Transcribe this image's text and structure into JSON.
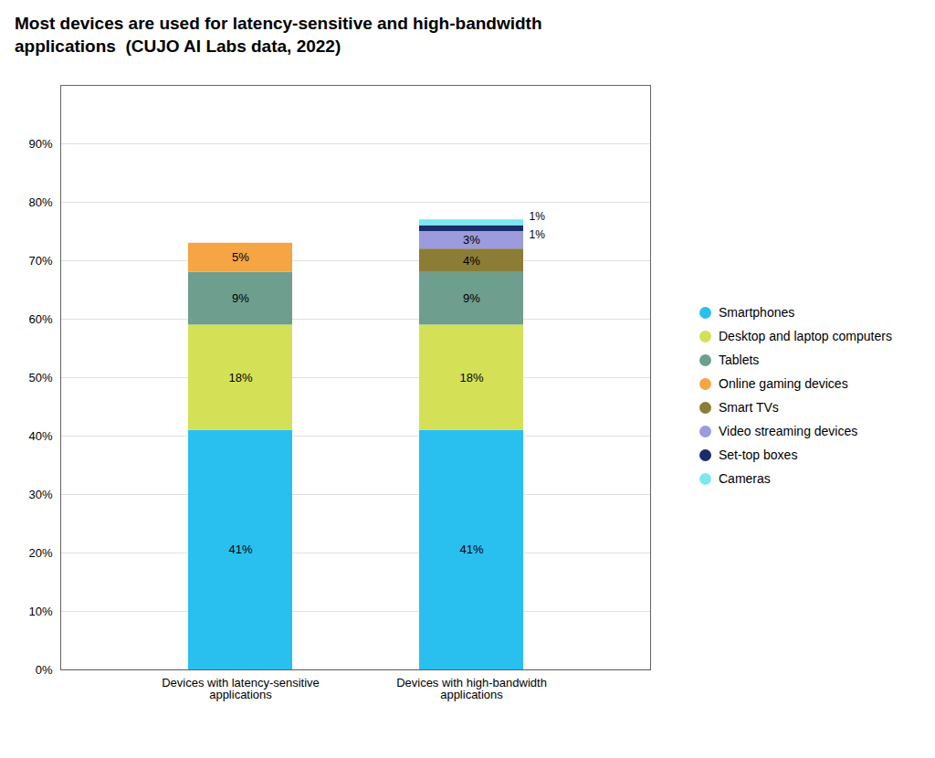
{
  "chart_data": {
    "type": "bar",
    "stacked": true,
    "title": "Most devices are used for latency-sensitive and high-bandwidth\napplications  (CUJO AI Labs data, 2022)",
    "categories": [
      "Devices with latency-sensitive\napplications",
      "Devices with high-bandwidth\napplications"
    ],
    "series": [
      {
        "name": "Smartphones",
        "color": "#29C0F0",
        "values": [
          41,
          41
        ],
        "value_labels": [
          "41%",
          "41%"
        ]
      },
      {
        "name": "Desktop and laptop computers",
        "color": "#D4E157",
        "values": [
          18,
          18
        ],
        "value_labels": [
          "18%",
          "18%"
        ]
      },
      {
        "name": "Tablets",
        "color": "#6E9E8E",
        "values": [
          9,
          9
        ],
        "value_labels": [
          "9%",
          "9%"
        ]
      },
      {
        "name": "Online gaming devices",
        "color": "#F5A543",
        "values": [
          5,
          0
        ],
        "value_labels": [
          "5%",
          null
        ]
      },
      {
        "name": "Smart TVs",
        "color": "#8B7D35",
        "values": [
          0,
          4
        ],
        "value_labels": [
          null,
          "4%"
        ]
      },
      {
        "name": "Video streaming devices",
        "color": "#9B9BDD",
        "values": [
          0,
          3
        ],
        "value_labels": [
          null,
          "3%"
        ]
      },
      {
        "name": "Set-top boxes",
        "color": "#1A2C6B",
        "values": [
          0,
          1
        ],
        "value_labels": [
          null,
          "1%"
        ]
      },
      {
        "name": "Cameras",
        "color": "#7BE8F0",
        "values": [
          0,
          1
        ],
        "value_labels": [
          null,
          "1%"
        ]
      }
    ],
    "ylim": [
      0,
      100
    ],
    "yticks": [
      {
        "value": 0,
        "label": "0%"
      },
      {
        "value": 10,
        "label": "10%"
      },
      {
        "value": 20,
        "label": "20%"
      },
      {
        "value": 30,
        "label": "30%"
      },
      {
        "value": 40,
        "label": "40%"
      },
      {
        "value": 50,
        "label": "50%"
      },
      {
        "value": 60,
        "label": "60%"
      },
      {
        "value": 70,
        "label": "70%"
      },
      {
        "value": 80,
        "label": "80%"
      },
      {
        "value": 90,
        "label": "90%"
      }
    ],
    "grid": true,
    "legend": "right",
    "data_labels": true
  }
}
